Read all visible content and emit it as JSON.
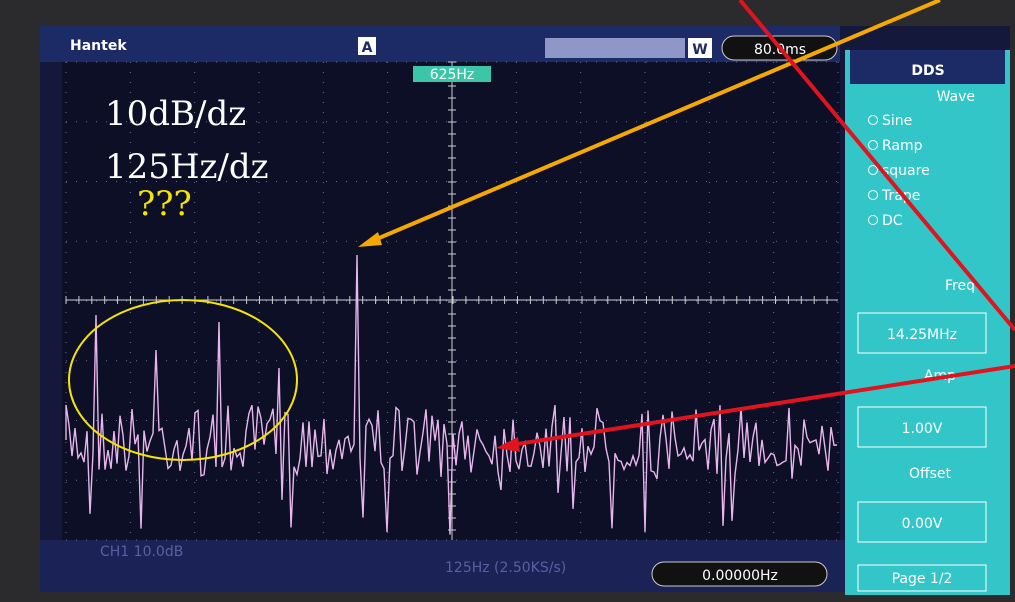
{
  "header": {
    "brand": "Hantek",
    "trigger": "A",
    "marker": "625Hz",
    "timebase": "80.0ms",
    "window": "W"
  },
  "panel": {
    "title": "DDS",
    "wave_label": "Wave",
    "waves": [
      "Sine",
      "Ramp",
      "square",
      "Trape",
      "DC"
    ],
    "freq_label": "Freq",
    "freq": "14.25MHz",
    "amp_label": "Amp",
    "amp": "1.00V",
    "offset_label": "Offset",
    "offset": "0.00V",
    "page": "Page 1/2"
  },
  "footer": {
    "channel": "CH1 10.0dB",
    "span": "125Hz (2.50KS/s)",
    "readout": "0.00000Hz"
  },
  "annotations": {
    "scale": "10dB/dz",
    "span": "125Hz/dz",
    "question": "???"
  }
}
